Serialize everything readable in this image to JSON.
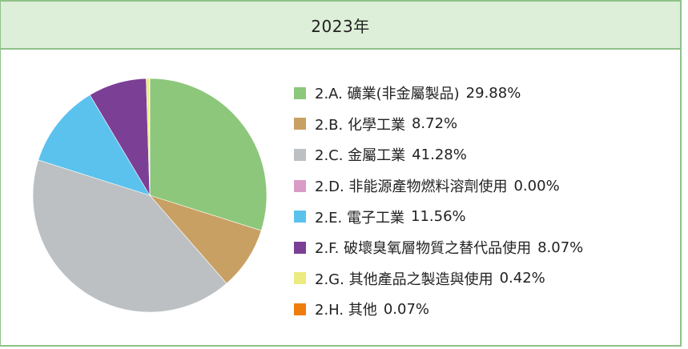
{
  "header": {
    "title": "2023年"
  },
  "chart_data": {
    "type": "pie",
    "title": "2023年",
    "slices": [
      {
        "label": "2.A. 礦業(非金屬製品)",
        "value": 29.88,
        "pct_text": "29.88%",
        "color": "#8dc77b"
      },
      {
        "label": "2.B. 化學工業",
        "value": 8.72,
        "pct_text": "8.72%",
        "color": "#c9a063"
      },
      {
        "label": "2.C. 金屬工業",
        "value": 41.28,
        "pct_text": "41.28%",
        "color": "#bcc0c2"
      },
      {
        "label": "2.D. 非能源產物燃料溶劑使用",
        "value": 0.0,
        "pct_text": "0.00%",
        "color": "#d89cc6"
      },
      {
        "label": "2.E. 電子工業",
        "value": 11.56,
        "pct_text": "11.56%",
        "color": "#5bc2ee"
      },
      {
        "label": "2.F. 破壞臭氧層物質之替代品使用",
        "value": 8.07,
        "pct_text": "8.07%",
        "color": "#7b3f96"
      },
      {
        "label": "2.G. 其他產品之製造與使用",
        "value": 0.42,
        "pct_text": "0.42%",
        "color": "#eceb7f"
      },
      {
        "label": "2.H. 其他",
        "value": 0.07,
        "pct_text": "0.07%",
        "color": "#ef7d0e"
      }
    ],
    "start_angle_deg": 0,
    "direction": "clockwise",
    "legend_position": "right"
  }
}
